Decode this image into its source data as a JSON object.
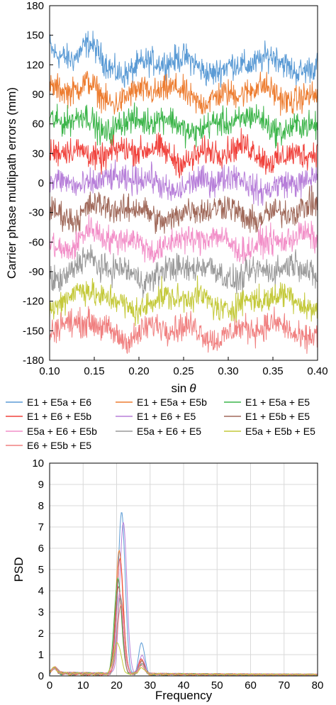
{
  "chart_data": [
    {
      "type": "line",
      "xlabel_main": "sin",
      "xlabel_symbol": "θ",
      "ylabel": "Carrier phase multipath errors (mm)",
      "xlim": [
        0.1,
        0.4
      ],
      "ylim": [
        -180,
        180
      ],
      "xticks": [
        "0.10",
        "0.15",
        "0.20",
        "0.25",
        "0.30",
        "0.35",
        "0.40"
      ],
      "yticks": [
        "180",
        "150",
        "120",
        "90",
        "60",
        "30",
        "0",
        "-30",
        "-60",
        "-90",
        "-120",
        "-150",
        "-180"
      ],
      "grid": false,
      "legend_position": "bottom",
      "series": [
        {
          "name": "E1 + E5a + E6",
          "color": "#5b9bd5",
          "offset": 120
        },
        {
          "name": "E1 + E5a + E5b",
          "color": "#ed7d31",
          "offset": 90
        },
        {
          "name": "E1 + E5a + E5",
          "color": "#3cb54a",
          "offset": 60
        },
        {
          "name": "E1 + E6 + E5b",
          "color": "#f0423c",
          "offset": 30
        },
        {
          "name": "E1 + E6 + E5",
          "color": "#b77fd9",
          "offset": 0
        },
        {
          "name": "E1 + E5b + E5",
          "color": "#a0695a",
          "offset": -30
        },
        {
          "name": "E5a + E6 + E5b",
          "color": "#f28fc8",
          "offset": -60
        },
        {
          "name": "E5a + E6 + E5",
          "color": "#9a9a9a",
          "offset": -90
        },
        {
          "name": "E5a + E5b + E5",
          "color": "#c4c93a",
          "offset": -120
        },
        {
          "name": "E6 + E5b + E5",
          "color": "#f08080",
          "offset": -150
        }
      ]
    },
    {
      "type": "line",
      "xlabel": "Frequency",
      "ylabel": "PSD",
      "xlim": [
        0,
        80
      ],
      "ylim": [
        0,
        10
      ],
      "xticks": [
        "0",
        "10",
        "20",
        "30",
        "40",
        "50",
        "60",
        "70",
        "80"
      ],
      "yticks": [
        "0",
        "1",
        "2",
        "3",
        "4",
        "5",
        "6",
        "7",
        "8",
        "9",
        "10"
      ],
      "grid": true,
      "peaks": [
        {
          "color": "#5b9bd5",
          "center": 21.5,
          "height": 7.6,
          "second": 1.5
        },
        {
          "color": "#b77fd9",
          "center": 22.0,
          "height": 7.1,
          "second": 0.9
        },
        {
          "color": "#ed7d31",
          "center": 20.8,
          "height": 5.8,
          "second": 0.6
        },
        {
          "color": "#f0423c",
          "center": 21.0,
          "height": 5.4,
          "second": 0.7
        },
        {
          "color": "#3cb54a",
          "center": 20.4,
          "height": 4.5,
          "second": 0.5
        },
        {
          "color": "#a0695a",
          "center": 20.6,
          "height": 4.1,
          "second": 0.6
        },
        {
          "color": "#f28fc8",
          "center": 20.9,
          "height": 3.8,
          "second": 0.5
        },
        {
          "color": "#9a9a9a",
          "center": 21.2,
          "height": 3.6,
          "second": 0.5
        },
        {
          "color": "#f08080",
          "center": 21.3,
          "height": 3.3,
          "second": 0.4
        },
        {
          "color": "#c4c93a",
          "center": 20.2,
          "height": 1.5,
          "second": 0.3
        }
      ]
    }
  ]
}
